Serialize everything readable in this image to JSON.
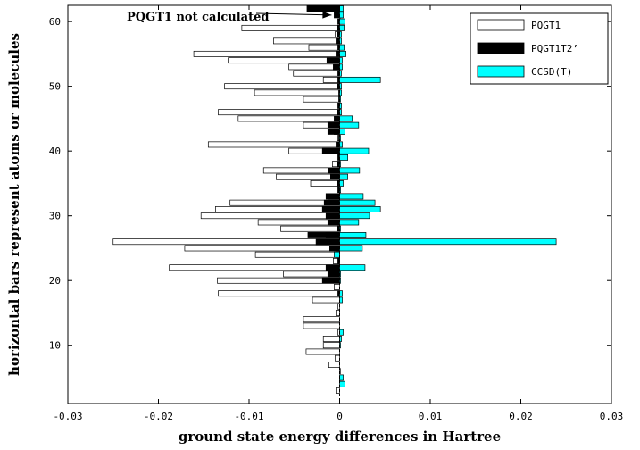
{
  "chart_data": {
    "type": "bar",
    "orientation": "horizontal",
    "xlabel": "ground state energy differences in Hartree",
    "ylabel": "horizontal bars represent atoms or molecules",
    "xlim": [
      -0.03,
      0.03
    ],
    "ylim": [
      1,
      62.5
    ],
    "x_ticks": [
      "-0.03",
      "-0.02",
      "-0.01",
      "0",
      "0.01",
      "0.02",
      "0.03"
    ],
    "x_tick_values": [
      -0.03,
      -0.02,
      -0.01,
      0,
      0.01,
      0.02,
      0.03
    ],
    "y_ticks": [
      "10",
      "20",
      "30",
      "40",
      "50",
      "60"
    ],
    "y_tick_values": [
      10,
      20,
      30,
      40,
      50,
      60
    ],
    "grid": false,
    "legend_position": "top-right",
    "annotation": {
      "text": "PQGT1 not calculated",
      "points_to": [
        -0.0005,
        61
      ]
    },
    "series": [
      {
        "name": "PQGT1",
        "color": "#ffffff",
        "stroke": "#000000",
        "y": [
          3,
          5,
          6,
          7,
          8,
          9,
          10,
          11,
          12,
          13,
          14,
          15,
          16,
          17,
          18,
          19,
          20,
          21,
          22,
          23,
          24,
          25,
          26,
          27,
          28,
          29,
          30,
          31,
          32,
          33,
          34,
          35,
          36,
          37,
          38,
          39,
          40,
          41,
          42,
          43,
          44,
          45,
          46,
          47,
          48,
          49,
          50,
          51,
          52,
          53,
          54,
          55,
          56,
          57,
          58,
          59,
          60,
          61
        ],
        "values": [
          -0.0004,
          0,
          0,
          -0.0012,
          -0.0005,
          -0.0037,
          -0.0018,
          -0.0018,
          -0.0002,
          -0.004,
          -0.004,
          -0.0004,
          -0.0002,
          -0.003,
          -0.0134,
          -0.0006,
          -0.0135,
          -0.0062,
          -0.0188,
          -0.0007,
          -0.0093,
          -0.0171,
          -0.025,
          -0.0015,
          -0.0065,
          -0.009,
          -0.0153,
          -0.0137,
          -0.0121,
          -0.0012,
          0,
          -0.0032,
          -0.007,
          -0.0084,
          -0.0008,
          0,
          -0.0056,
          -0.0145,
          -0.0002,
          -0.0006,
          -0.004,
          -0.0112,
          -0.0134,
          0,
          -0.004,
          -0.0094,
          -0.0127,
          -0.0018,
          -0.0051,
          -0.0056,
          -0.0123,
          -0.0161,
          -0.0034,
          -0.0073,
          -0.0005,
          -0.0108,
          0,
          0
        ]
      },
      {
        "name": "PQGT1T2’",
        "color": "#000000",
        "stroke": "#000000",
        "y": [
          18,
          20,
          21,
          22,
          23,
          24,
          25,
          26,
          27,
          28,
          29,
          30,
          31,
          32,
          33,
          34,
          35,
          36,
          37,
          38,
          39,
          40,
          41,
          42,
          43,
          44,
          45,
          46,
          47,
          48,
          49,
          50,
          51,
          52,
          53,
          54,
          55,
          56,
          57,
          58,
          59,
          60,
          61,
          62
        ],
        "values": [
          -0.0002,
          -0.0019,
          -0.0013,
          -0.0015,
          -0.0002,
          -0.0004,
          -0.0011,
          -0.0026,
          -0.0035,
          -0.0003,
          -0.0013,
          -0.0015,
          -0.0019,
          -0.0017,
          -0.0015,
          -0.0002,
          -0.0003,
          -0.001,
          -0.0012,
          -0.0003,
          -0.0002,
          -0.0019,
          -0.0004,
          -0.0001,
          -0.0013,
          -0.0013,
          -0.0006,
          -0.0003,
          -0.0002,
          -0.0001,
          -0.0001,
          -0.0003,
          -0.0002,
          -0.0002,
          -0.0007,
          -0.0014,
          -0.0004,
          -0.0002,
          -0.0004,
          -0.0003,
          -0.0003,
          -0.0002,
          -0.0006,
          -0.0036
        ]
      },
      {
        "name": "CCSD(T)",
        "color": "#00ffff",
        "stroke": "#000000",
        "y": [
          4,
          5,
          10,
          11,
          12,
          17,
          18,
          20,
          21,
          22,
          24,
          25,
          26,
          27,
          28,
          29,
          30,
          31,
          32,
          33,
          34,
          35,
          36,
          37,
          38,
          39,
          40,
          41,
          42,
          43,
          44,
          45,
          46,
          47,
          48,
          49,
          50,
          51,
          52,
          53,
          54,
          55,
          56,
          57,
          58,
          59,
          60,
          61,
          62
        ],
        "values": [
          0.0006,
          0.0004,
          0.0001,
          0.0002,
          0.0004,
          0.0003,
          0.0003,
          0.0001,
          0.0001,
          0.0028,
          -0.0006,
          0.0025,
          0.0239,
          0.0029,
          0.0001,
          0.0021,
          0.0033,
          0.0045,
          0.0039,
          0.0026,
          0.0001,
          0.0004,
          0.0009,
          0.0022,
          0.0001,
          0.0009,
          0.0032,
          0.0003,
          0.0001,
          0.0006,
          0.0021,
          0.0014,
          0.0002,
          0.0002,
          0.0001,
          0.0002,
          0.0002,
          0.0045,
          0.0002,
          0.0003,
          0.0003,
          0.0007,
          0.0005,
          0.0002,
          0.0002,
          0.0005,
          0.0006,
          0.0004,
          0.0004
        ]
      }
    ]
  }
}
